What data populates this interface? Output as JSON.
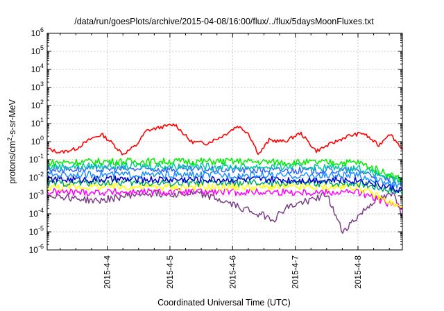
{
  "chart_data": {
    "type": "line",
    "title": "/data/run/goesPlots/archive/2015-04-08/16:00/flux/../flux/5daysMoonFluxes.txt",
    "xlabel": "Coordinated Universal Time (UTC)",
    "ylabel": "protons/cm2-s-sr-MeV",
    "ylabel_parts": {
      "base": "protons/cm",
      "sup": "2",
      "rest": "-s-sr-MeV"
    },
    "yscale": "log",
    "ylim": [
      "1e-6",
      "1e6"
    ],
    "y_ticks": [
      {
        "base": "10",
        "exp": "-6",
        "value": -6
      },
      {
        "base": "10",
        "exp": "-5",
        "value": -5
      },
      {
        "base": "10",
        "exp": "-4",
        "value": -4
      },
      {
        "base": "10",
        "exp": "-3",
        "value": -3
      },
      {
        "base": "10",
        "exp": "-2",
        "value": -2
      },
      {
        "base": "10",
        "exp": "-1",
        "value": -1
      },
      {
        "base": "10",
        "exp": "0",
        "value": 0
      },
      {
        "base": "10",
        "exp": "1",
        "value": 1
      },
      {
        "base": "10",
        "exp": "2",
        "value": 2
      },
      {
        "base": "10",
        "exp": "3",
        "value": 3
      },
      {
        "base": "10",
        "exp": "4",
        "value": 4
      },
      {
        "base": "10",
        "exp": "5",
        "value": 5
      },
      {
        "base": "10",
        "exp": "6",
        "value": 6
      }
    ],
    "xlim": [
      "2015-04-03 01:00",
      "2015-04-08 17:00"
    ],
    "x_ticks": [
      {
        "label": "2015-4-4",
        "day": 4
      },
      {
        "label": "2015-4-5",
        "day": 5
      },
      {
        "label": "2015-4-6",
        "day": 6
      },
      {
        "label": "2015-4-7",
        "day": 7
      },
      {
        "label": "2015-4-8",
        "day": 8
      }
    ],
    "grid": true,
    "legend": "none",
    "series": [
      {
        "color": "#ff0000",
        "x": [
          "2015-04-03 01:00",
          "2015-04-03 06:00",
          "2015-04-03 12:00",
          "2015-04-03 18:00",
          "2015-04-03 22:00",
          "2015-04-04 02:00",
          "2015-04-04 06:00",
          "2015-04-04 11:00",
          "2015-04-04 15:00",
          "2015-04-04 20:00",
          "2015-04-05 02:00",
          "2015-04-05 08:00",
          "2015-04-05 14:00",
          "2015-04-05 20:00",
          "2015-04-06 02:00",
          "2015-04-06 06:00",
          "2015-04-06 10:00",
          "2015-04-06 14:00",
          "2015-04-06 20:00",
          "2015-04-07 02:00",
          "2015-04-07 08:00",
          "2015-04-07 14:00",
          "2015-04-07 20:00",
          "2015-04-08 02:00",
          "2015-04-08 08:00",
          "2015-04-08 12:00",
          "2015-04-08 17:00"
        ],
        "y": [
          0.4,
          0.25,
          0.4,
          1.5,
          2.5,
          0.8,
          0.2,
          0.6,
          4.0,
          6.0,
          9.0,
          1.0,
          0.8,
          2.0,
          7.5,
          3.0,
          0.2,
          1.2,
          1.0,
          3.0,
          0.3,
          0.8,
          2.0,
          3.0,
          0.6,
          3.0,
          0.4
        ]
      },
      {
        "color": "#00ee00",
        "x": [
          "2015-04-03 01:00",
          "2015-04-04 00:00",
          "2015-04-05 00:00",
          "2015-04-06 00:00",
          "2015-04-07 00:00",
          "2015-04-08 00:00",
          "2015-04-08 17:00"
        ],
        "y": [
          0.07,
          0.08,
          0.08,
          0.08,
          0.07,
          0.07,
          0.008
        ]
      },
      {
        "color": "#00c8a0",
        "x": [
          "2015-04-03 01:00",
          "2015-04-04 00:00",
          "2015-04-05 00:00",
          "2015-04-06 00:00",
          "2015-04-07 00:00",
          "2015-04-08 00:00",
          "2015-04-08 17:00"
        ],
        "y": [
          0.04,
          0.045,
          0.045,
          0.04,
          0.04,
          0.035,
          0.006
        ]
      },
      {
        "color": "#3366ff",
        "x": [
          "2015-04-03 01:00",
          "2015-04-04 00:00",
          "2015-04-05 00:00",
          "2015-04-06 00:00",
          "2015-04-07 00:00",
          "2015-04-08 00:00",
          "2015-04-08 17:00"
        ],
        "y": [
          0.03,
          0.03,
          0.03,
          0.028,
          0.025,
          0.025,
          0.005
        ]
      },
      {
        "color": "#1e90ff",
        "x": [
          "2015-04-03 01:00",
          "2015-04-04 00:00",
          "2015-04-05 00:00",
          "2015-04-06 00:00",
          "2015-04-07 00:00",
          "2015-04-08 00:00",
          "2015-04-08 17:00"
        ],
        "y": [
          0.015,
          0.015,
          0.014,
          0.014,
          0.013,
          0.013,
          0.003
        ]
      },
      {
        "color": "#0000cc",
        "x": [
          "2015-04-03 01:00",
          "2015-04-04 00:00",
          "2015-04-05 00:00",
          "2015-04-06 00:00",
          "2015-04-07 00:00",
          "2015-04-08 00:00",
          "2015-04-08 17:00"
        ],
        "y": [
          0.008,
          0.008,
          0.008,
          0.008,
          0.0075,
          0.0075,
          0.002
        ]
      },
      {
        "color": "#00a86b",
        "x": [
          "2015-04-03 01:00",
          "2015-04-04 00:00",
          "2015-04-05 00:00",
          "2015-04-06 00:00",
          "2015-04-07 00:00",
          "2015-04-08 00:00",
          "2015-04-08 17:00"
        ],
        "y": [
          0.005,
          0.0055,
          0.005,
          0.005,
          0.005,
          0.005,
          0.0015
        ]
      },
      {
        "color": "#ffff00",
        "x": [
          "2015-04-03 01:00",
          "2015-04-04 00:00",
          "2015-04-05 00:00",
          "2015-04-06 00:00",
          "2015-04-07 00:00",
          "2015-04-08 00:00",
          "2015-04-08 17:00"
        ],
        "y": [
          0.003,
          0.0032,
          0.003,
          0.003,
          0.003,
          0.003,
          0.0002
        ]
      },
      {
        "color": "#ff00ff",
        "x": [
          "2015-04-03 01:00",
          "2015-04-04 00:00",
          "2015-04-05 00:00",
          "2015-04-06 00:00",
          "2015-04-07 00:00",
          "2015-04-08 00:00",
          "2015-04-08 17:00"
        ],
        "y": [
          0.0016,
          0.0016,
          0.0016,
          0.0016,
          0.0016,
          0.0016,
          0.0002
        ]
      },
      {
        "color": "#7b3f86",
        "x": [
          "2015-04-03 01:00",
          "2015-04-03 20:00",
          "2015-04-04 12:00",
          "2015-04-05 12:00",
          "2015-04-06 16:00",
          "2015-04-06 20:00",
          "2015-04-07 12:00",
          "2015-04-07 18:00",
          "2015-04-08 06:00",
          "2015-04-08 14:00",
          "2015-04-08 17:00"
        ],
        "y": [
          0.0012,
          0.0005,
          0.0013,
          0.0013,
          5e-05,
          0.0002,
          0.0012,
          1e-05,
          0.0005,
          0.0012,
          8e-05
        ]
      }
    ]
  }
}
